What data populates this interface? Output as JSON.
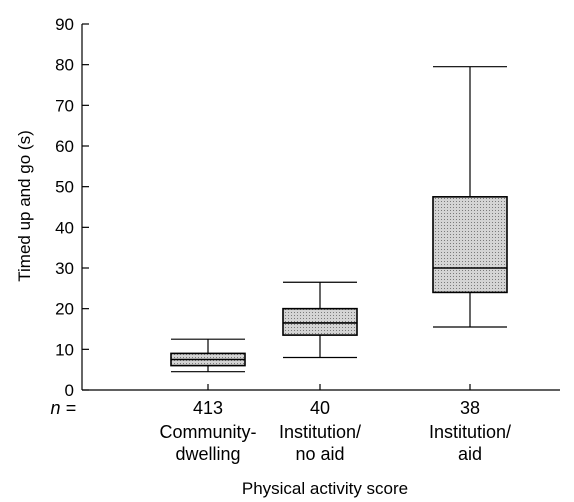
{
  "chart_data": {
    "type": "box",
    "ylabel": "Timed up and go (s)",
    "xlabel": "Physical activity score",
    "ylim": [
      0,
      90
    ],
    "yticks": [
      0,
      10,
      20,
      30,
      40,
      50,
      60,
      70,
      80,
      90
    ],
    "n_prefix": "n =",
    "grid": false,
    "box_color": "#c8c8c8",
    "groups": [
      {
        "n": "413",
        "label_lines": [
          "Community-",
          "dwelling"
        ],
        "whisker_low": 4.5,
        "q1": 6,
        "median": 7.5,
        "q3": 9,
        "whisker_high": 12.5
      },
      {
        "n": "40",
        "label_lines": [
          "Institution/",
          "no aid"
        ],
        "whisker_low": 8,
        "q1": 13.5,
        "median": 16.5,
        "q3": 20,
        "whisker_high": 26.5
      },
      {
        "n": "38",
        "label_lines": [
          "Institution/",
          "aid"
        ],
        "whisker_low": 15.5,
        "q1": 24,
        "median": 30,
        "q3": 47.5,
        "whisker_high": 79.5
      }
    ]
  }
}
